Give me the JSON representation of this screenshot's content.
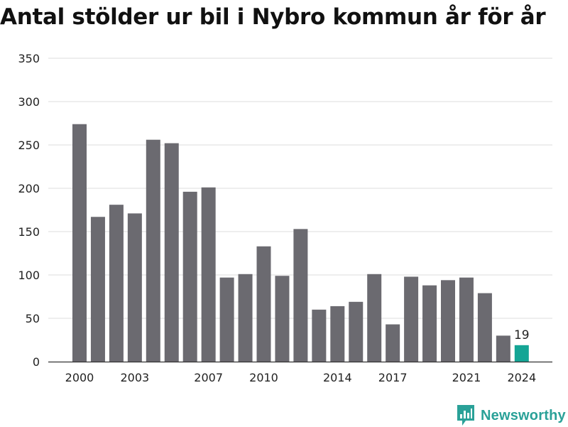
{
  "title": "Antal stölder ur bil i Nybro kommun år för år",
  "brand": {
    "name": "Newsworthy",
    "icon": "newsworthy-logo-icon",
    "color": "#2aa198"
  },
  "colors": {
    "bar": "#6b6a70",
    "highlight": "#14a595",
    "grid": "#dddddd",
    "axis": "#333333",
    "text": "#222222"
  },
  "chart_data": {
    "type": "bar",
    "title": "Antal stölder ur bil i Nybro kommun år för år",
    "xlabel": "",
    "ylabel": "",
    "categories": [
      "2000",
      "2001",
      "2002",
      "2003",
      "2004",
      "2005",
      "2006",
      "2007",
      "2008",
      "2009",
      "2010",
      "2011",
      "2012",
      "2013",
      "2014",
      "2015",
      "2016",
      "2017",
      "2018",
      "2019",
      "2020",
      "2021",
      "2022",
      "2023",
      "2024"
    ],
    "values": [
      274,
      167,
      181,
      171,
      256,
      252,
      196,
      201,
      97,
      101,
      133,
      99,
      153,
      60,
      64,
      69,
      101,
      43,
      98,
      88,
      94,
      97,
      79,
      30,
      19
    ],
    "x_tick_labels": [
      "2000",
      "2003",
      "2007",
      "2010",
      "2014",
      "2017",
      "2021",
      "2024"
    ],
    "y_ticks": [
      0,
      50,
      100,
      150,
      200,
      250,
      300,
      350
    ],
    "ylim": [
      0,
      350
    ],
    "highlight": {
      "category": "2024",
      "label": "19"
    },
    "grid": true,
    "legend": "none"
  }
}
